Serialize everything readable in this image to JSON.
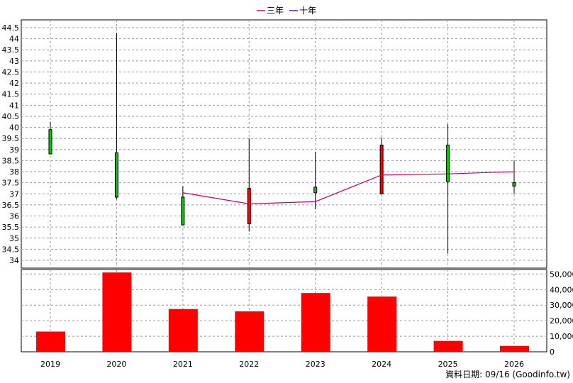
{
  "legend": [
    {
      "label": "三年",
      "color": "#cc0066"
    },
    {
      "label": "十年",
      "color": "#6a0dad"
    }
  ],
  "footer": "資料日期: 09/16  (Goodinfo.tw)",
  "chart_data": [
    {
      "type": "candlestick",
      "categories": [
        "2019",
        "2020",
        "2021",
        "2022",
        "2023",
        "2024",
        "2025",
        "2026"
      ],
      "ylim": [
        34,
        44.5
      ],
      "yticks": [
        34,
        34.5,
        35,
        35.5,
        36,
        36.5,
        37,
        37.5,
        38,
        38.5,
        39,
        39.5,
        40,
        40.5,
        41,
        41.5,
        42,
        42.5,
        43,
        43.5,
        44,
        44.5
      ],
      "grid": true,
      "up_color": "#00cc00",
      "down_color": "#ff0000",
      "candles": [
        {
          "x": "2019",
          "open": 38.8,
          "close": 39.9,
          "high": 40.25,
          "low": 38.8
        },
        {
          "x": "2020",
          "open": 36.85,
          "close": 38.85,
          "high": 44.25,
          "low": 36.75
        },
        {
          "x": "2021",
          "open": 35.6,
          "close": 36.85,
          "high": 37.35,
          "low": 35.6
        },
        {
          "x": "2022",
          "open": 37.25,
          "close": 35.65,
          "high": 39.5,
          "low": 35.3
        },
        {
          "x": "2023",
          "open": 37.05,
          "close": 37.3,
          "high": 38.9,
          "low": 36.3
        },
        {
          "x": "2024",
          "open": 39.2,
          "close": 37.0,
          "high": 39.55,
          "low": 37.0
        },
        {
          "x": "2025",
          "open": 37.55,
          "close": 39.2,
          "high": 40.15,
          "low": 34.3
        },
        {
          "x": "2026",
          "open": 37.35,
          "close": 37.5,
          "high": 38.5,
          "low": 37.0
        }
      ],
      "series": [
        {
          "name": "三年",
          "type": "line",
          "color": "#cc0066",
          "x": [
            "2021",
            "2022",
            "2023",
            "2024",
            "2025",
            "2026"
          ],
          "values": [
            37.05,
            36.55,
            36.65,
            37.85,
            37.9,
            38.0
          ]
        }
      ]
    },
    {
      "type": "bar",
      "categories": [
        "2019",
        "2020",
        "2021",
        "2022",
        "2023",
        "2024",
        "2025",
        "2026"
      ],
      "values": [
        13000,
        51000,
        27500,
        26000,
        37800,
        35500,
        7000,
        3800
      ],
      "ylim": [
        0,
        52000
      ],
      "yticks": [
        0,
        10000,
        20000,
        30000,
        40000,
        50000
      ],
      "ytick_labels": [
        "0",
        "10,000",
        "20,000",
        "30,000",
        "40,000",
        "50,000"
      ],
      "bar_color": "#ff0000",
      "grid": true
    }
  ]
}
